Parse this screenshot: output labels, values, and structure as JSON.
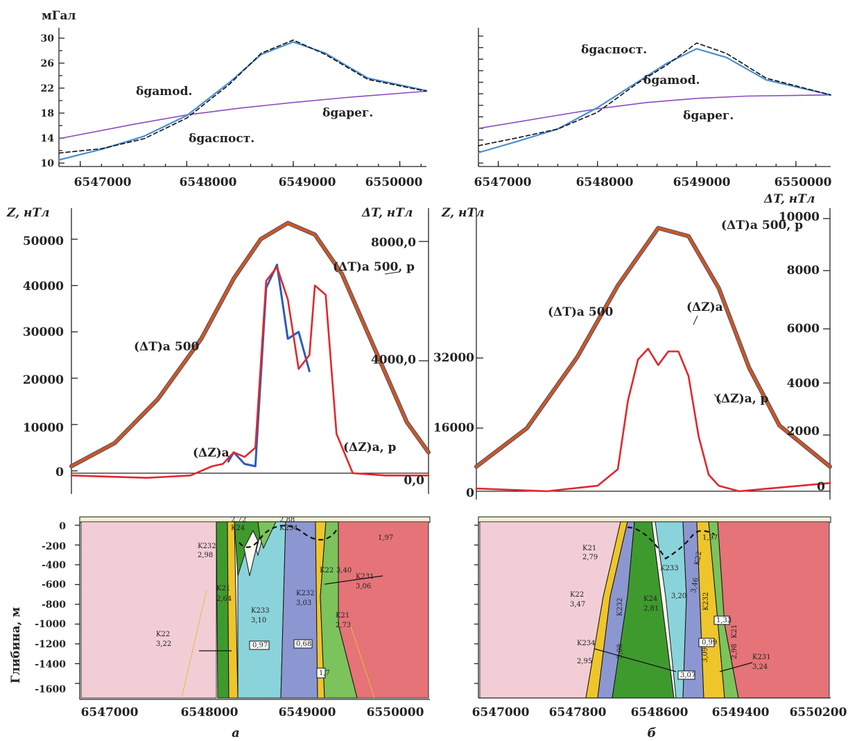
{
  "colors": {
    "observed": "#111111",
    "model": "#4a8fd0",
    "regional": "#8a4cc2",
    "dT": "#c85a1a",
    "dT_outline": "#2c3a9a",
    "dZ": "#e3262c",
    "dZ_alt": "#2c5bb8",
    "host_left": "#f3cdd6",
    "host_right": "#e57378",
    "green": "#3f9a2e",
    "cyan": "#8ad3da",
    "blue": "#8c97d2",
    "yellow": "#efc52c",
    "light_green": "#7cc35b"
  },
  "panels": {
    "a": {
      "label": "а",
      "gravity": {
        "ylabel": "мГал",
        "yticks": [
          "10",
          "14",
          "18",
          "22",
          "26",
          "30"
        ],
        "xticks": [
          "6547000",
          "6548000",
          "6549000",
          "6550000"
        ],
        "ann_model": "δgamod.",
        "ann_obs": "δgaспост.",
        "ann_reg": "δgaрег."
      },
      "magnetic": {
        "ylabel_left": "Z, нТл",
        "ylabel_right": "ΔT, нТл",
        "yticks_left": [
          "0",
          "10000",
          "20000",
          "30000",
          "40000",
          "50000"
        ],
        "yticks_right": [
          "0,0",
          "4000,0",
          "8000,0"
        ],
        "ann_dT500": "(ΔT)a 500",
        "ann_dT500p": "(ΔT)a 500, p",
        "ann_dZ": "(ΔZ)a",
        "ann_dZp": "(ΔZ)a, p"
      },
      "section": {
        "ylabel": "Глибина, м",
        "yticks": [
          "0",
          "-200",
          "-400",
          "-600",
          "-800",
          "-1000",
          "-1200",
          "-1400",
          "-1600"
        ],
        "xticks": [
          "6547000",
          "6548000",
          "6549000",
          "6550000"
        ],
        "bodies": [
          {
            "name": "K232",
            "density": "2,98"
          },
          {
            "name": "K24",
            "density": "2,72"
          },
          {
            "name": "K234",
            "density": "2,88"
          },
          {
            "name": "K21",
            "density": "2,64"
          },
          {
            "name": "K233",
            "density": "3,10"
          },
          {
            "name": "K232",
            "density": "3,03"
          },
          {
            "name": "K22",
            "density": "3,40"
          },
          {
            "name": "K231",
            "density": "3,06"
          },
          {
            "name": "K21",
            "density": "2,73"
          },
          {
            "name": "K22",
            "density": "3,22"
          }
        ],
        "box_values": [
          "0,97",
          "0,68",
          "1,7"
        ],
        "top_value": "1,97"
      }
    },
    "b": {
      "label": "б",
      "gravity": {
        "xticks": [
          "6547000",
          "6548000",
          "6549000",
          "6550000"
        ],
        "ann_obs": "δgaспост.",
        "ann_model": "δgamod.",
        "ann_reg": "δgaрег."
      },
      "magnetic": {
        "ylabel_left": "Z, нТл",
        "ylabel_right": "ΔT, нТл",
        "yticks_left": [
          "0",
          "16000",
          "32000"
        ],
        "yticks_right": [
          "0",
          "2000",
          "4000",
          "6000",
          "8000",
          "10000"
        ],
        "ann_dT500": "(ΔT)a 500",
        "ann_dT500p": "(ΔT)a 500, p",
        "ann_dZ": "(ΔZ)a",
        "ann_dZp": "(ΔZ)a, p"
      },
      "section": {
        "xticks": [
          "6547000",
          "6547800",
          "6548600",
          "6549400",
          "6550200"
        ],
        "bodies": [
          {
            "name": "K21",
            "density": "2,79"
          },
          {
            "name": "K233",
            "density": ""
          },
          {
            "name": "K22",
            "density": "3,46"
          },
          {
            "name": "K22",
            "density": "3,47"
          },
          {
            "name": "K24",
            "density": "2,81"
          },
          {
            "name": "K232",
            "density": "3,08"
          },
          {
            "name": "K232",
            "density": "3,09"
          },
          {
            "name": "K234",
            "density": "2,95"
          },
          {
            "name": "K231",
            "density": "3,24"
          },
          {
            "name": "K21",
            "density": "2,98"
          }
        ],
        "box_values": [
          "1,33",
          "0,99",
          "3,07"
        ],
        "inner_value": "3,20",
        "top_value": "1,97"
      }
    }
  },
  "chart_data": [
    {
      "type": "line",
      "panel": "а (gravity)",
      "ylabel": "мГал",
      "ylim": [
        10,
        30
      ],
      "xlim": [
        6546800,
        6550250
      ],
      "series": [
        {
          "name": "δgaспост.",
          "x": [
            6546800,
            6547200,
            6547600,
            6548000,
            6548400,
            6548700,
            6549000,
            6549300,
            6549700,
            6550250
          ],
          "y": [
            11.6,
            12.3,
            13.9,
            17.2,
            22.6,
            27.6,
            29.7,
            27.4,
            23.4,
            21.5
          ]
        },
        {
          "name": "δgamod.",
          "x": [
            6546800,
            6547200,
            6547600,
            6548000,
            6548400,
            6548700,
            6549000,
            6549300,
            6549700,
            6550250
          ],
          "y": [
            10.5,
            12.2,
            14.3,
            17.6,
            22.9,
            27.4,
            29.4,
            27.6,
            23.6,
            21.6
          ]
        },
        {
          "name": "δgaрег.",
          "x": [
            6546800,
            6547500,
            6548000,
            6548500,
            6549000,
            6549500,
            6550250
          ],
          "y": [
            13.9,
            16.2,
            17.7,
            18.8,
            19.7,
            20.5,
            21.5
          ]
        }
      ]
    },
    {
      "type": "line",
      "panel": "б (gravity)",
      "ylim": [
        10,
        32
      ],
      "xlim": [
        6546800,
        6550350
      ],
      "series": [
        {
          "name": "δgaспост.",
          "x": [
            6546800,
            6547200,
            6547600,
            6548000,
            6548400,
            6548700,
            6549000,
            6549300,
            6549700,
            6550350
          ],
          "y": [
            13.0,
            14.4,
            15.9,
            18.8,
            23.8,
            27.0,
            30.8,
            29.0,
            24.7,
            21.8
          ]
        },
        {
          "name": "δgamod.",
          "x": [
            6546800,
            6547200,
            6547600,
            6548000,
            6548400,
            6548700,
            6549000,
            6549300,
            6549700,
            6550350
          ],
          "y": [
            11.8,
            13.8,
            15.9,
            19.6,
            24.0,
            27.3,
            29.8,
            28.3,
            24.4,
            21.8
          ]
        },
        {
          "name": "δgaрег.",
          "x": [
            6546800,
            6547500,
            6548000,
            6548500,
            6549000,
            6549500,
            6550350
          ],
          "y": [
            16.0,
            18.0,
            19.4,
            20.5,
            21.2,
            21.6,
            21.8
          ]
        }
      ]
    },
    {
      "type": "line",
      "panel": "а (magnetic)",
      "ylabel": "Z, нТл",
      "ylim": [
        -2000,
        57000
      ],
      "xlim": [
        6546800,
        6550100
      ],
      "series": [
        {
          "name": "(ΔT)a 500",
          "x": [
            6546800,
            6547200,
            6547600,
            6548000,
            6548300,
            6548550,
            6548800,
            6549050,
            6549300,
            6549600,
            6549900,
            6550100
          ],
          "y": [
            1000,
            6000,
            15500,
            28500,
            41500,
            50000,
            53500,
            51000,
            42500,
            26500,
            10500,
            4000
          ]
        },
        {
          "name": "(ΔZ)a, p",
          "x": [
            6546800,
            6547500,
            6547900,
            6548100,
            6548200,
            6548300,
            6548400,
            6548500,
            6548600,
            6548700,
            6548800,
            6548900,
            6549000,
            6549050,
            6549150,
            6549250,
            6549400,
            6549700,
            6550100
          ],
          "y": [
            -1000,
            -1500,
            -1000,
            1000,
            1500,
            4000,
            3000,
            5000,
            41000,
            44000,
            37000,
            22000,
            25000,
            40000,
            38000,
            8000,
            -500,
            -1000,
            -1000
          ]
        },
        {
          "name": "(ΔZ)a",
          "x": [
            6548250,
            6548300,
            6548400,
            6548500,
            6548600,
            6548700,
            6548800,
            6548900,
            6549000
          ],
          "y": [
            2000,
            4000,
            1500,
            1000,
            39500,
            44500,
            28500,
            30000,
            21500
          ]
        }
      ]
    },
    {
      "type": "line",
      "panel": "б (magnetic)",
      "ylabel": "Z, нТл",
      "ylim": [
        -3000,
        50000
      ],
      "xlim": [
        6546800,
        6550300
      ],
      "series": [
        {
          "name": "(ΔT)a 500",
          "x": [
            6546800,
            6547300,
            6547800,
            6548200,
            6548600,
            6548900,
            6549200,
            6549500,
            6549800,
            6550300
          ],
          "y": [
            2000,
            9000,
            22000,
            35000,
            45500,
            44000,
            34500,
            20000,
            9500,
            2000
          ]
        },
        {
          "name": "(ΔZ)a, p",
          "x": [
            6546800,
            6547500,
            6548000,
            6548200,
            6548300,
            6548400,
            6548500,
            6548600,
            6548700,
            6548800,
            6548900,
            6549000,
            6549100,
            6549200,
            6549400,
            6549700,
            6550300
          ],
          "y": [
            -2000,
            -2500,
            -1500,
            1500,
            14000,
            21500,
            23500,
            20500,
            23000,
            23000,
            18500,
            7500,
            500,
            -1500,
            -2500,
            -2000,
            -1000
          ]
        }
      ]
    }
  ]
}
